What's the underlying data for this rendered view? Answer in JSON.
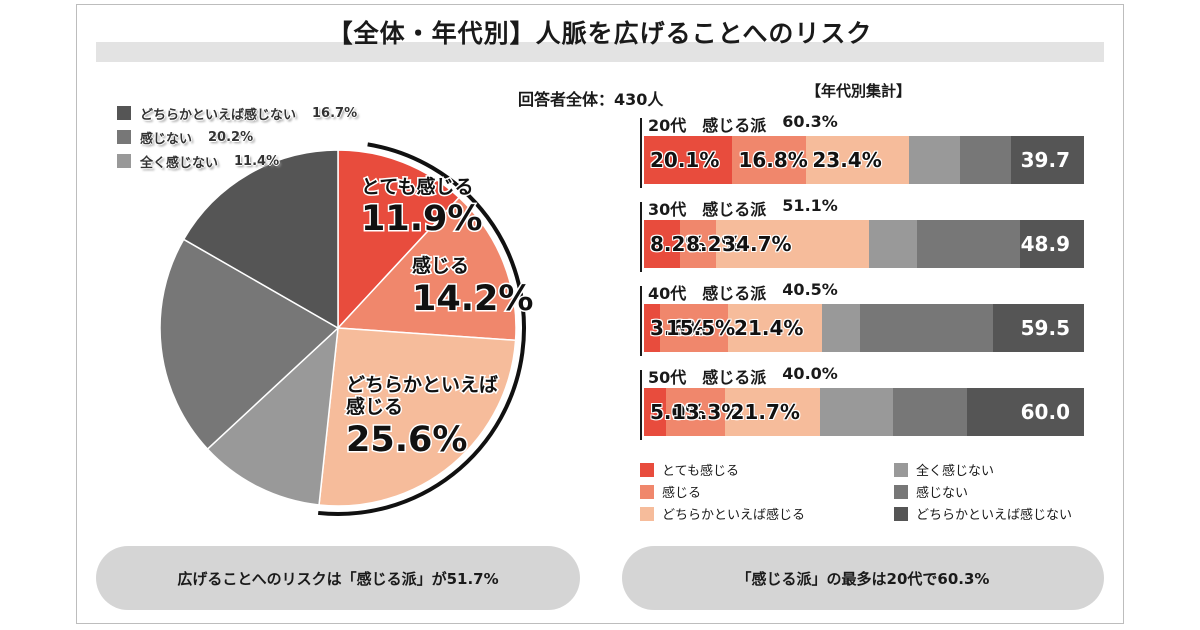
{
  "title": "【全体・年代別】人脈を広げることへのリスク",
  "total_label": "回答者全体：430人",
  "age_heading": "【年代別集計】",
  "colors": {
    "strong": "#e84c3d",
    "feel": "#f0876c",
    "somewhat": "#f6bc9b",
    "none_at_all": "#999999",
    "none": "#777777",
    "somewhat_none": "#555555"
  },
  "pie_legend": [
    {
      "label": "どちらかといえば感じない",
      "value": "16.7%",
      "color": "#555555"
    },
    {
      "label": "感じない",
      "value": "20.2%",
      "color": "#777777"
    },
    {
      "label": "全く感じない",
      "value": "11.4%",
      "color": "#999999"
    }
  ],
  "pie_labels": {
    "strong_text": "とても感じる",
    "strong_value": "11.9%",
    "feel_text": "感じる",
    "feel_value": "14.2%",
    "somewhat_text1": "どちらかといえば",
    "somewhat_text2": "感じる",
    "somewhat_value": "25.6%"
  },
  "ages": [
    {
      "age": "20代",
      "group": "感じる派",
      "group_value": "60.3%",
      "labels": [
        "20.1%",
        "16.8%",
        "23.4%"
      ],
      "neg_label": "39.7"
    },
    {
      "age": "30代",
      "group": "感じる派",
      "group_value": "51.1%",
      "labels": [
        "8.2%",
        "8.2%",
        "34.7%"
      ],
      "neg_label": "48.9"
    },
    {
      "age": "40代",
      "group": "感じる派",
      "group_value": "40.5%",
      "labels": [
        "3.6%",
        "15.5%",
        "21.4%"
      ],
      "neg_label": "59.5"
    },
    {
      "age": "50代",
      "group": "感じる派",
      "group_value": "40.0%",
      "labels": [
        "5.0%",
        "13.3%",
        "21.7%"
      ],
      "neg_label": "60.0"
    }
  ],
  "bar_legend": {
    "strong": "とても感じる",
    "feel": "感じる",
    "somewhat": "どちらかといえば感じる",
    "none_at_all": "全く感じない",
    "none": "感じない",
    "somewhat_none": "どちらかといえば感じない"
  },
  "summary_left": "広げることへのリスクは「感じる派」が51.7%",
  "summary_right": "「感じる派」の最多は20代で60.3%",
  "chart_data": [
    {
      "type": "pie",
      "title": "",
      "categories": [
        "とても感じる",
        "感じる",
        "どちらかといえば感じる",
        "全く感じない",
        "感じない",
        "どちらかといえば感じない"
      ],
      "values": [
        11.9,
        14.2,
        25.6,
        11.4,
        20.2,
        16.7
      ],
      "legend": "top-left"
    },
    {
      "type": "bar",
      "orientation": "horizontal-stacked",
      "categories": [
        "20代",
        "30代",
        "40代",
        "50代"
      ],
      "series": [
        {
          "name": "とても感じる",
          "values": [
            20.1,
            8.2,
            3.6,
            5.0
          ]
        },
        {
          "name": "感じる",
          "values": [
            16.8,
            8.2,
            15.5,
            13.3
          ]
        },
        {
          "name": "どちらかといえば感じる",
          "values": [
            23.4,
            34.7,
            21.4,
            21.7
          ]
        },
        {
          "name": "全く感じない",
          "values": [
            11.5,
            11.0,
            8.6,
            16.5
          ]
        },
        {
          "name": "感じない",
          "values": [
            11.6,
            23.3,
            30.3,
            17.0
          ]
        },
        {
          "name": "どちらかといえば感じない",
          "values": [
            16.6,
            14.6,
            20.6,
            26.5
          ]
        }
      ],
      "group_totals": {
        "感じる派": [
          60.3,
          51.1,
          40.5,
          40.0
        ],
        "感じない派": [
          39.7,
          48.9,
          59.5,
          60.0
        ]
      },
      "xlim": [
        0,
        100
      ],
      "legend": "bottom"
    }
  ]
}
